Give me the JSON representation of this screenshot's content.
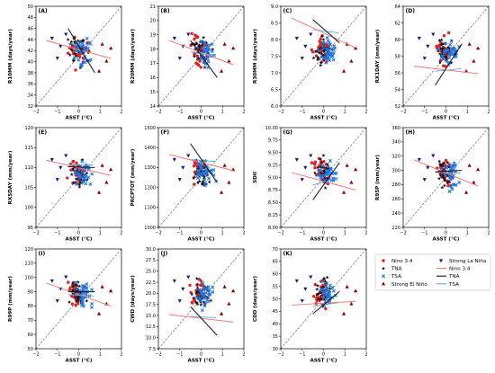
{
  "legend": {
    "entries": [
      {
        "label": "Nino 3.4",
        "kind": "marker",
        "marker": "circle",
        "color": "#d62728"
      },
      {
        "label": "TNA",
        "kind": "marker",
        "marker": "star",
        "color": "#111111"
      },
      {
        "label": "TSA",
        "kind": "marker",
        "marker": "cross",
        "color": "#1f77e4"
      },
      {
        "label": "Strong El Niño",
        "kind": "marker",
        "marker": "triangle-up",
        "color": "#8b0000"
      },
      {
        "label": "Strong La Niña",
        "kind": "marker",
        "marker": "triangle-down",
        "color": "#14206e"
      },
      {
        "label": "Nino 3.4",
        "kind": "line",
        "color": "#f07a7a"
      },
      {
        "label": "TNA",
        "kind": "line",
        "color": "#111111"
      },
      {
        "label": "TSA",
        "kind": "line",
        "color": "#5fa8e8"
      }
    ]
  },
  "colors": {
    "nino": "#d62728",
    "tna": "#111111",
    "tsa": "#1f77e4",
    "elnino": "#8b0000",
    "lanina": "#14206e",
    "nino_line": "#f07a7a",
    "tna_line": "#111111",
    "tsa_line": "#5fa8e8"
  },
  "chart_data": [
    {
      "type": "scatter",
      "panel": "(A)",
      "xlabel": "ASST (°C)",
      "ylabel": "R10MM (days/year)",
      "xlim": [
        -2,
        2
      ],
      "ylim": [
        32,
        50
      ],
      "xticks": [
        "−2",
        "−1",
        "0",
        "1",
        "2"
      ],
      "yticks": [
        "32",
        "34",
        "36",
        "38",
        "40",
        "42",
        "44",
        "46",
        "48",
        "50"
      ],
      "ytick_values": [
        32,
        34,
        36,
        38,
        40,
        42,
        44,
        46,
        48,
        50
      ],
      "trend": {
        "nino": [
          [
            -1.5,
            43.8
          ],
          [
            1.5,
            40.6
          ]
        ],
        "tna": [
          [
            -0.5,
            46.0
          ],
          [
            0.75,
            38.0
          ]
        ],
        "tsa": [
          [
            -0.5,
            43.2
          ],
          [
            0.7,
            43.0
          ]
        ]
      }
    },
    {
      "type": "scatter",
      "panel": "(B)",
      "xlabel": "ASST (°C)",
      "ylabel": "R20MM (days/year)",
      "xlim": [
        -2,
        2
      ],
      "ylim": [
        14,
        21
      ],
      "xticks": [
        "−2",
        "−1",
        "0",
        "1",
        "2"
      ],
      "yticks": [
        "14",
        "15",
        "16",
        "17",
        "18",
        "19",
        "20",
        "21"
      ],
      "ytick_values": [
        14,
        15,
        16,
        17,
        18,
        19,
        20,
        21
      ],
      "trend": {
        "nino": [
          [
            -1.5,
            18.6
          ],
          [
            1.5,
            16.9
          ]
        ],
        "tna": [
          [
            -0.5,
            18.6
          ],
          [
            0.75,
            16.0
          ]
        ],
        "tsa": [
          [
            -0.5,
            17.8
          ],
          [
            0.7,
            17.5
          ]
        ]
      }
    },
    {
      "type": "scatter",
      "panel": "(C)",
      "xlabel": "ASST (°C)",
      "ylabel": "R30MM (days/year)",
      "xlim": [
        -2,
        2
      ],
      "ylim": [
        6.0,
        9.0
      ],
      "xticks": [
        "−2",
        "−1",
        "0",
        "1",
        "2"
      ],
      "yticks": [
        "6.0",
        "6.5",
        "7.0",
        "7.5",
        "8.0",
        "8.5",
        "9.0"
      ],
      "ytick_values": [
        6.0,
        6.5,
        7.0,
        7.5,
        8.0,
        8.5,
        9.0
      ],
      "trend": {
        "nino": [
          [
            -1.5,
            8.65
          ],
          [
            1.5,
            7.75
          ]
        ],
        "tna": [
          [
            -0.5,
            8.6
          ],
          [
            0.75,
            7.9
          ]
        ],
        "tsa": [
          [
            -0.5,
            8.3
          ],
          [
            0.7,
            8.2
          ]
        ]
      }
    },
    {
      "type": "scatter",
      "panel": "(D)",
      "xlabel": "ASST (°C)",
      "ylabel": "RX1DAY (mm/year)",
      "xlim": [
        -2,
        2
      ],
      "ylim": [
        52,
        64
      ],
      "xticks": [
        "−2",
        "−1",
        "0",
        "1",
        "2"
      ],
      "yticks": [
        "52",
        "54",
        "56",
        "58",
        "60",
        "62",
        "64"
      ],
      "ytick_values": [
        52,
        54,
        56,
        58,
        60,
        62,
        64
      ],
      "trend": {
        "nino": [
          [
            -1.5,
            56.8
          ],
          [
            1.5,
            55.9
          ]
        ],
        "tna": [
          [
            -0.5,
            54.5
          ],
          [
            0.75,
            59.5
          ]
        ],
        "tsa": [
          [
            -0.5,
            56.2
          ],
          [
            0.7,
            56.5
          ]
        ]
      }
    },
    {
      "type": "scatter",
      "panel": "(E)",
      "xlabel": "ASST (°C)",
      "ylabel": "RX5DAY (mm/year)",
      "xlim": [
        -2,
        2
      ],
      "ylim": [
        95,
        120
      ],
      "xticks": [
        "−2",
        "−1",
        "0",
        "1",
        "2"
      ],
      "yticks": [
        "95",
        "100",
        "105",
        "110",
        "115",
        "120"
      ],
      "ytick_values": [
        95,
        100,
        105,
        110,
        115,
        120
      ],
      "trend": {
        "nino": [
          [
            -1.5,
            111.8
          ],
          [
            1.5,
            108.0
          ]
        ],
        "tna": [
          [
            -0.5,
            110.2
          ],
          [
            0.75,
            110.0
          ]
        ],
        "tsa": [
          [
            -0.5,
            110.8
          ],
          [
            0.7,
            110.6
          ]
        ]
      }
    },
    {
      "type": "scatter",
      "panel": "(F)",
      "xlabel": "ASST (°C)",
      "ylabel": "PRCPTOT (mm/year)",
      "xlim": [
        -2,
        2
      ],
      "ylim": [
        1000,
        1500
      ],
      "xticks": [
        "−2",
        "−1",
        "0",
        "1",
        "2"
      ],
      "yticks": [
        "1000",
        "1100",
        "1200",
        "1300",
        "1400",
        "1500"
      ],
      "ytick_values": [
        1000,
        1100,
        1200,
        1300,
        1400,
        1500
      ],
      "trend": {
        "nino": [
          [
            -1.5,
            1365
          ],
          [
            1.5,
            1285
          ]
        ],
        "tna": [
          [
            -0.5,
            1420
          ],
          [
            0.75,
            1225
          ]
        ],
        "tsa": [
          [
            -0.5,
            1340
          ],
          [
            0.7,
            1330
          ]
        ]
      }
    },
    {
      "type": "scatter",
      "panel": "(G)",
      "xlabel": "ASST (°C)",
      "ylabel": "SDII",
      "xlim": [
        -2,
        2
      ],
      "ylim": [
        8.0,
        10.0
      ],
      "xticks": [
        "−2",
        "−1",
        "0",
        "1",
        "2"
      ],
      "yticks": [
        "8.00",
        "8.25",
        "8.50",
        "8.75",
        "9.00",
        "9.25",
        "9.50",
        "9.75",
        "10.00"
      ],
      "ytick_values": [
        8.0,
        8.25,
        8.5,
        8.75,
        9.0,
        9.25,
        9.5,
        9.75,
        10.0
      ],
      "trend": {
        "nino": [
          [
            -1.5,
            9.1
          ],
          [
            1.5,
            8.75
          ]
        ],
        "tna": [
          [
            -0.5,
            8.55
          ],
          [
            0.75,
            9.3
          ]
        ],
        "tsa": [
          [
            -0.5,
            8.85
          ],
          [
            0.7,
            9.0
          ]
        ]
      }
    },
    {
      "type": "scatter",
      "panel": "(H)",
      "xlabel": "ASST (°C)",
      "ylabel": "R95P (mm/year)",
      "xlim": [
        -2,
        2
      ],
      "ylim": [
        220,
        360
      ],
      "xticks": [
        "−2",
        "−1",
        "0",
        "1",
        "2"
      ],
      "yticks": [
        "220",
        "240",
        "260",
        "280",
        "300",
        "320",
        "340",
        "360"
      ],
      "ytick_values": [
        220,
        240,
        260,
        280,
        300,
        320,
        340,
        360
      ],
      "trend": {
        "nino": [
          [
            -1.5,
            315
          ],
          [
            1.5,
            278
          ]
        ],
        "tna": [
          [
            -0.5,
            298
          ],
          [
            0.75,
            300
          ]
        ],
        "tsa": [
          [
            -0.5,
            297
          ],
          [
            0.7,
            296
          ]
        ]
      }
    },
    {
      "type": "scatter",
      "panel": "(I)",
      "xlabel": "ASST (°C)",
      "ylabel": "R99P (mm/year)",
      "xlim": [
        -2,
        2
      ],
      "ylim": [
        50,
        120
      ],
      "xticks": [
        "−2",
        "−1",
        "0",
        "1",
        "2"
      ],
      "yticks": [
        "50",
        "60",
        "70",
        "80",
        "90",
        "100",
        "110",
        "120"
      ],
      "ytick_values": [
        50,
        60,
        70,
        80,
        90,
        100,
        110,
        120
      ],
      "trend": {
        "nino": [
          [
            -1.5,
            96
          ],
          [
            1.5,
            80
          ]
        ],
        "tna": [
          [
            -0.5,
            90
          ],
          [
            0.75,
            90
          ]
        ],
        "tsa": [
          [
            -0.5,
            88
          ],
          [
            0.7,
            87
          ]
        ]
      }
    },
    {
      "type": "scatter",
      "panel": "(J)",
      "xlabel": "ASST (°C)",
      "ylabel": "CWD (days/year)",
      "xlim": [
        -2,
        2
      ],
      "ylim": [
        7.5,
        30.0
      ],
      "xticks": [
        "−2",
        "−1",
        "0",
        "1",
        "2"
      ],
      "yticks": [
        "7.5",
        "10.0",
        "12.5",
        "15.0",
        "17.5",
        "20.0",
        "22.5",
        "25.0",
        "27.5",
        "30.0"
      ],
      "ytick_values": [
        7.5,
        10.0,
        12.5,
        15.0,
        17.5,
        20.0,
        22.5,
        25.0,
        27.5,
        30.0
      ],
      "trend": {
        "nino": [
          [
            -1.5,
            15.2
          ],
          [
            1.5,
            13.5
          ]
        ],
        "tna": [
          [
            -0.5,
            17.0
          ],
          [
            0.75,
            10.5
          ]
        ],
        "tsa": [
          [
            -0.5,
            14.8
          ],
          [
            0.7,
            14.5
          ]
        ]
      }
    },
    {
      "type": "scatter",
      "panel": "(K)",
      "xlabel": "ASST (°C)",
      "ylabel": "CDD (days/year)",
      "xlim": [
        -2,
        2
      ],
      "ylim": [
        30,
        70
      ],
      "xticks": [
        "−2",
        "−1",
        "0",
        "1",
        "2"
      ],
      "yticks": [
        "30",
        "35",
        "40",
        "45",
        "50",
        "55",
        "60",
        "65",
        "70"
      ],
      "ytick_values": [
        30,
        35,
        40,
        45,
        50,
        55,
        60,
        65,
        70
      ],
      "trend": {
        "nino": [
          [
            -1.5,
            47.5
          ],
          [
            1.5,
            49.0
          ]
        ],
        "tna": [
          [
            -0.5,
            44.0
          ],
          [
            0.75,
            53.0
          ]
        ],
        "tsa": [
          [
            -0.5,
            47.0
          ],
          [
            0.7,
            48.5
          ]
        ]
      }
    }
  ]
}
